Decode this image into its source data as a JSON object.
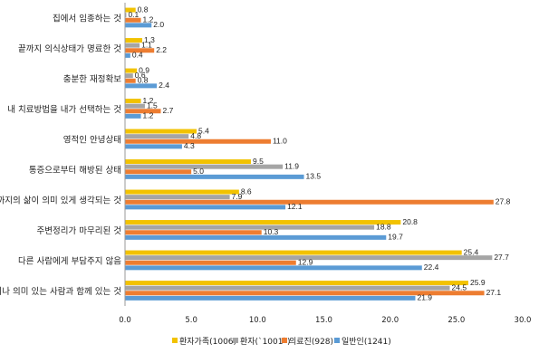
{
  "chart_data": {
    "type": "bar",
    "orientation": "horizontal",
    "categories": [
      "집에서 임종하는 것",
      "끝까지 의식상태가 명료한 것",
      "충분한 재정확보",
      "내 치료방법을 내가 선택하는 것",
      "영적인 안녕상태",
      "통증으로부터 해방된 상태",
      "지금까지의 삶이 의미 있게 생각되는 것",
      "주변정리가 마무리된 것",
      "다른 사람에게 부담주지 않음",
      "가족이나 의미 있는 사람과 함께 있는 것"
    ],
    "series": [
      {
        "name": "환자가족(1006)",
        "color": "#F2C200",
        "values": [
          0.8,
          1.3,
          0.9,
          1.2,
          5.4,
          9.5,
          8.6,
          20.8,
          25.4,
          25.9
        ]
      },
      {
        "name": "환자(`1001`)",
        "color": "#A5A5A5",
        "values": [
          0.1,
          1.1,
          0.6,
          1.5,
          4.8,
          11.9,
          7.9,
          18.8,
          27.7,
          24.5
        ]
      },
      {
        "name": "의료진(928)",
        "color": "#ED7D31",
        "values": [
          1.2,
          2.2,
          0.8,
          2.7,
          11.0,
          5.0,
          27.8,
          10.3,
          12.9,
          27.1
        ]
      },
      {
        "name": "일반인(1241)",
        "color": "#5B9BD5",
        "values": [
          2.0,
          0.4,
          2.4,
          1.2,
          4.3,
          13.5,
          12.1,
          19.7,
          22.4,
          21.9
        ]
      }
    ],
    "xlim": [
      0,
      30
    ],
    "xticks": [
      "0.0",
      "5.0",
      "10.0",
      "15.0",
      "20.0",
      "25.0",
      "30.0"
    ],
    "grid": false,
    "legend_position": "bottom"
  }
}
